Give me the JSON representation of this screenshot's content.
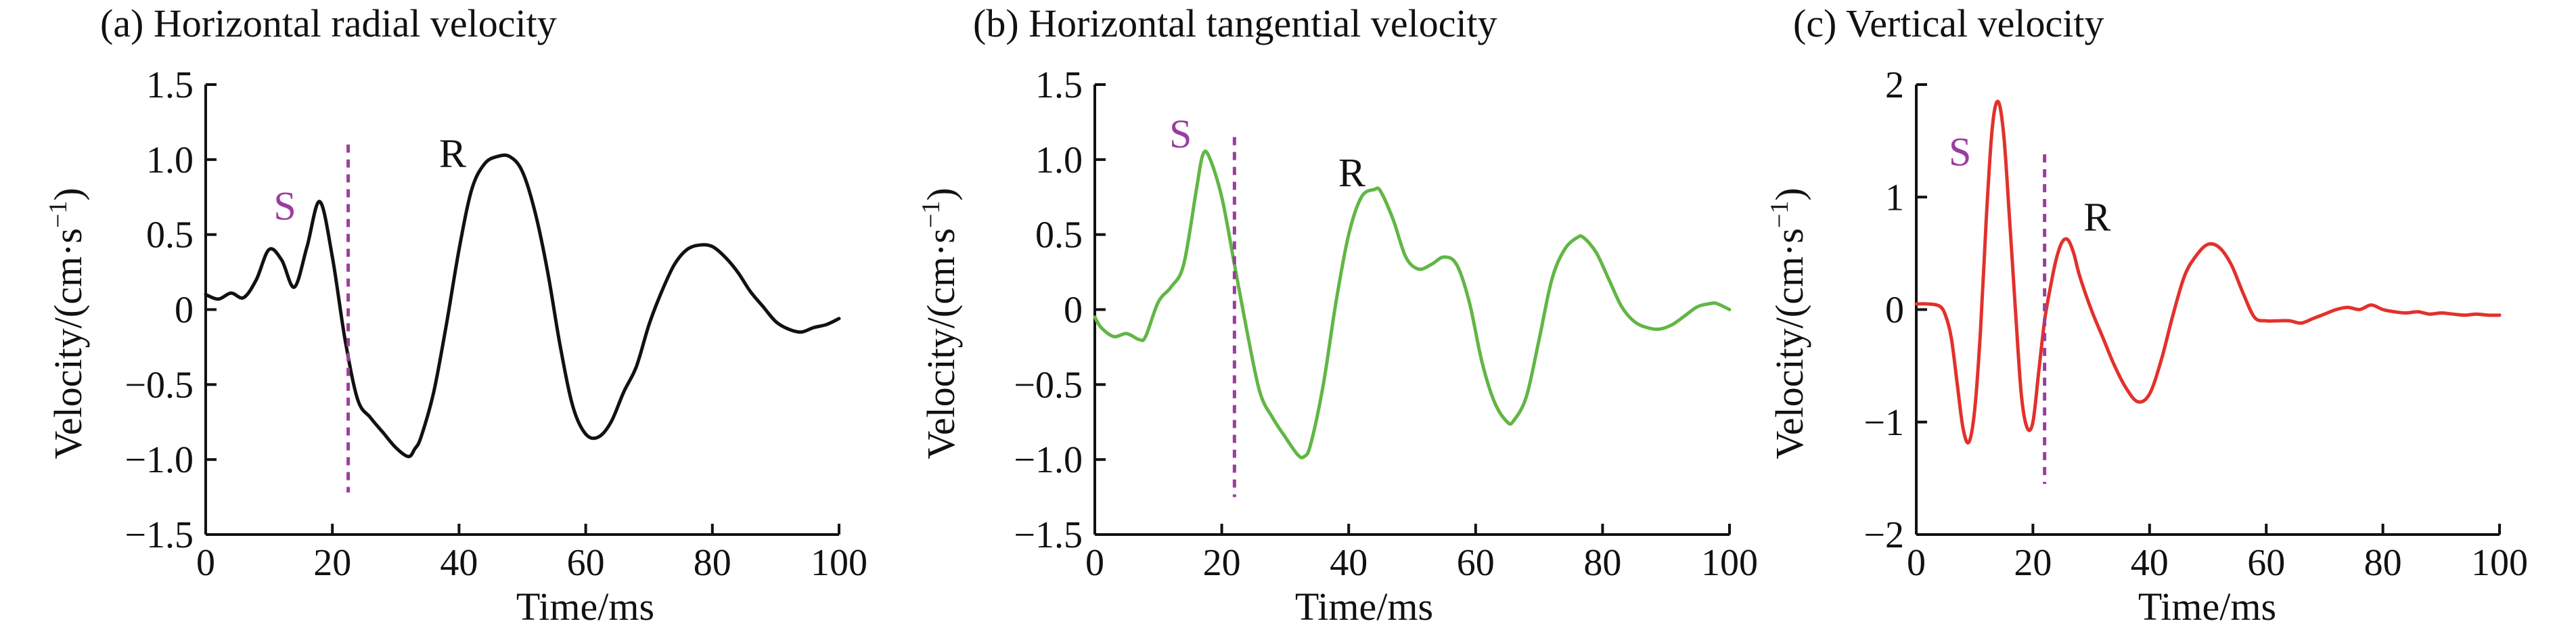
{
  "chart_data": [
    {
      "type": "line",
      "title": "(a) Horizontal radial velocity",
      "xlabel": "Time/ms",
      "ylabel": "Velocity/(cm·s",
      "ylabel_sup": "−1",
      "ylabel_close": ")",
      "xlim": [
        0,
        100
      ],
      "ylim": [
        -1.5,
        1.5
      ],
      "xticks": [
        0,
        20,
        40,
        60,
        80,
        100
      ],
      "xtick_labels": [
        "0",
        "20",
        "40",
        "60",
        "80",
        "100"
      ],
      "yticks": [
        -1.5,
        -1.0,
        -0.5,
        0,
        0.5,
        1.0,
        1.5
      ],
      "ytick_labels": [
        "−1.5",
        "−1.0",
        "−0.5",
        "0",
        "0.5",
        "1.0",
        "1.5"
      ],
      "color": "#111111",
      "marker": {
        "x": 22.5,
        "y_range": [
          -1.22,
          1.1
        ],
        "color": "#9b3da0"
      },
      "annotations": [
        {
          "text": "S",
          "x": 12.5,
          "y": 0.6,
          "color": "#9b3da0"
        },
        {
          "text": "R",
          "x": 39,
          "y": 0.95,
          "color": "#111111"
        }
      ],
      "series": [
        {
          "x": [
            0,
            2,
            4,
            6,
            8,
            10,
            12,
            14,
            16,
            18,
            20,
            22,
            24,
            26,
            28,
            30,
            32,
            33,
            34,
            36,
            38,
            40,
            42,
            44,
            46,
            48,
            50,
            52,
            54,
            56,
            58,
            60,
            62,
            64,
            66,
            68,
            70,
            72,
            74,
            76,
            78,
            80,
            82,
            84,
            86,
            88,
            90,
            92,
            94,
            96,
            98,
            100
          ],
          "y": [
            0.1,
            0.07,
            0.11,
            0.08,
            0.2,
            0.4,
            0.33,
            0.15,
            0.42,
            0.72,
            0.35,
            -0.2,
            -0.6,
            -0.72,
            -0.82,
            -0.92,
            -0.98,
            -0.93,
            -0.85,
            -0.55,
            -0.1,
            0.4,
            0.8,
            0.97,
            1.02,
            1.02,
            0.92,
            0.65,
            0.25,
            -0.25,
            -0.65,
            -0.83,
            -0.85,
            -0.75,
            -0.55,
            -0.38,
            -0.1,
            0.12,
            0.3,
            0.4,
            0.43,
            0.42,
            0.35,
            0.25,
            0.12,
            0.02,
            -0.08,
            -0.13,
            -0.15,
            -0.12,
            -0.1,
            -0.06
          ]
        }
      ]
    },
    {
      "type": "line",
      "title": "(b) Horizontal tangential velocity",
      "xlabel": "Time/ms",
      "ylabel": "Velocity/(cm·s",
      "ylabel_sup": "−1",
      "ylabel_close": ")",
      "xlim": [
        0,
        100
      ],
      "ylim": [
        -1.5,
        1.5
      ],
      "xticks": [
        0,
        20,
        40,
        60,
        80,
        100
      ],
      "xtick_labels": [
        "0",
        "20",
        "40",
        "60",
        "80",
        "100"
      ],
      "yticks": [
        -1.5,
        -1.0,
        -0.5,
        0,
        0.5,
        1.0,
        1.5
      ],
      "ytick_labels": [
        "−1.5",
        "−1.0",
        "−0.5",
        "0",
        "0.5",
        "1.0",
        "1.5"
      ],
      "color": "#62b645",
      "marker": {
        "x": 22,
        "y_range": [
          -1.25,
          1.15
        ],
        "color": "#9b3da0"
      },
      "annotations": [
        {
          "text": "S",
          "x": 13.5,
          "y": 1.08,
          "color": "#9b3da0"
        },
        {
          "text": "R",
          "x": 40.5,
          "y": 0.82,
          "color": "#111111"
        }
      ],
      "series": [
        {
          "x": [
            0,
            1,
            3,
            5,
            7,
            8,
            10,
            12,
            14,
            16,
            17,
            18,
            20,
            22,
            24,
            26,
            28,
            30,
            32,
            33,
            34,
            36,
            38,
            40,
            42,
            44,
            45,
            47,
            49,
            51,
            53,
            55,
            57,
            59,
            61,
            63,
            65,
            66,
            68,
            70,
            72,
            74,
            76,
            77,
            79,
            81,
            83,
            85,
            87,
            89,
            91,
            93,
            95,
            97,
            98,
            100
          ],
          "y": [
            -0.05,
            -0.12,
            -0.18,
            -0.16,
            -0.2,
            -0.18,
            0.05,
            0.15,
            0.3,
            0.8,
            1.03,
            1.02,
            0.75,
            0.3,
            -0.15,
            -0.55,
            -0.72,
            -0.85,
            -0.97,
            -0.98,
            -0.9,
            -0.5,
            0.05,
            0.5,
            0.75,
            0.8,
            0.79,
            0.6,
            0.35,
            0.27,
            0.3,
            0.35,
            0.3,
            0.05,
            -0.35,
            -0.62,
            -0.75,
            -0.74,
            -0.58,
            -0.2,
            0.2,
            0.4,
            0.48,
            0.48,
            0.38,
            0.2,
            0.02,
            -0.08,
            -0.12,
            -0.13,
            -0.1,
            -0.04,
            0.02,
            0.04,
            0.04,
            0.0
          ]
        }
      ]
    },
    {
      "type": "line",
      "title": "(c) Vertical velocity",
      "xlabel": "Time/ms",
      "ylabel": "Velocity/(cm·s",
      "ylabel_sup": "−1",
      "ylabel_close": ")",
      "xlim": [
        0,
        100
      ],
      "ylim": [
        -2,
        2
      ],
      "xticks": [
        0,
        20,
        40,
        60,
        80,
        100
      ],
      "xtick_labels": [
        "0",
        "20",
        "40",
        "60",
        "80",
        "100"
      ],
      "yticks": [
        -2,
        -1,
        0,
        1,
        2
      ],
      "ytick_labels": [
        "−2",
        "−1",
        "0",
        "1",
        "2"
      ],
      "color": "#e2312c",
      "marker": {
        "x": 22,
        "y_range": [
          -1.55,
          1.38
        ],
        "color": "#9b3da0"
      },
      "annotations": [
        {
          "text": "S",
          "x": 7.5,
          "y": 1.28,
          "color": "#9b3da0"
        },
        {
          "text": "R",
          "x": 31,
          "y": 0.7,
          "color": "#111111"
        }
      ],
      "series": [
        {
          "x": [
            0,
            2,
            4,
            5,
            6,
            7,
            8,
            9,
            10,
            11,
            12,
            13,
            14,
            15,
            16,
            17,
            18,
            19,
            20,
            21,
            22,
            23,
            24,
            25,
            26,
            27,
            28,
            30,
            32,
            34,
            36,
            38,
            40,
            42,
            44,
            46,
            48,
            50,
            52,
            54,
            56,
            58,
            60,
            62,
            64,
            66,
            68,
            70,
            72,
            74,
            76,
            78,
            80,
            82,
            84,
            86,
            88,
            90,
            92,
            94,
            96,
            98,
            100
          ],
          "y": [
            0.05,
            0.05,
            0.03,
            -0.05,
            -0.25,
            -0.65,
            -1.05,
            -1.18,
            -0.9,
            -0.2,
            0.8,
            1.6,
            1.85,
            1.55,
            0.8,
            0.0,
            -0.75,
            -1.05,
            -1.0,
            -0.55,
            -0.1,
            0.2,
            0.45,
            0.6,
            0.62,
            0.5,
            0.3,
            0.0,
            -0.25,
            -0.5,
            -0.7,
            -0.82,
            -0.75,
            -0.45,
            -0.05,
            0.3,
            0.48,
            0.58,
            0.55,
            0.4,
            0.15,
            -0.07,
            -0.1,
            -0.1,
            -0.1,
            -0.12,
            -0.08,
            -0.04,
            0.0,
            0.02,
            0.0,
            0.04,
            0.0,
            -0.02,
            -0.03,
            -0.02,
            -0.04,
            -0.03,
            -0.04,
            -0.05,
            -0.04,
            -0.05,
            -0.05
          ]
        }
      ]
    }
  ]
}
